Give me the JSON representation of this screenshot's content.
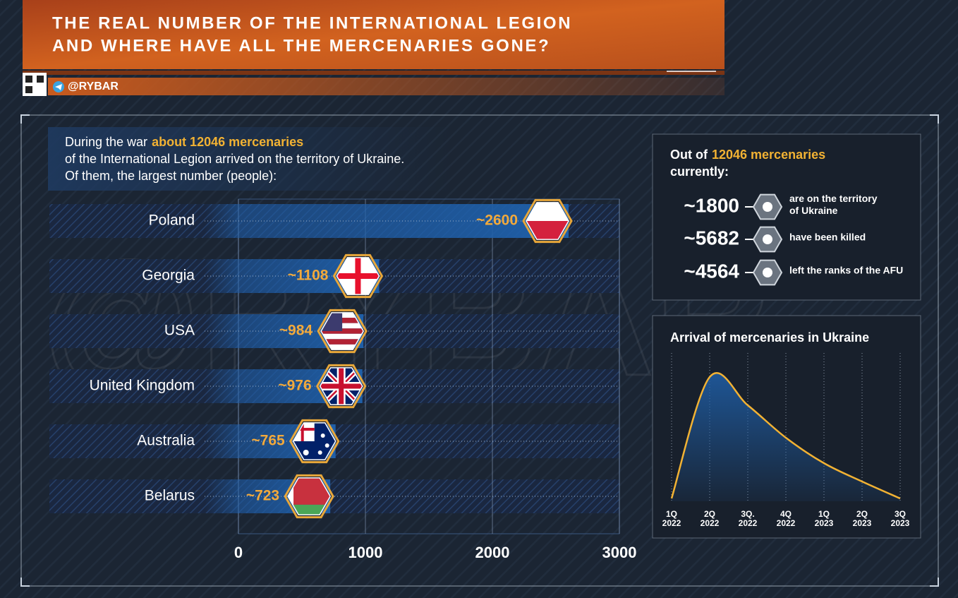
{
  "header": {
    "title": [
      "THE REAL NUMBER OF THE INTERNATIONAL LEGION",
      "AND WHERE HAVE ALL THE MERCENARIES GONE?"
    ],
    "handle": "@RYBAR"
  },
  "watermark": "@RYBAR",
  "intro": {
    "lead": "During the war",
    "highlight": "about 12046 mercenaries",
    "rest": [
      "of the International Legion arrived on the territory of Ukraine.",
      "Of them, the largest number (people):"
    ]
  },
  "summary": {
    "lead": "Out of",
    "highlight": "12046 mercenaries",
    "tail": "currently:",
    "items": [
      {
        "value": 1800,
        "value_label": "~1800",
        "text": [
          "are on the territory",
          "of Ukraine"
        ]
      },
      {
        "value": 5682,
        "value_label": "~5682",
        "text": [
          "have been killed"
        ]
      },
      {
        "value": 4564,
        "value_label": "~4564",
        "text": [
          "left the ranks of the AFU"
        ]
      }
    ]
  },
  "chart_data": [
    {
      "type": "bar",
      "orientation": "horizontal",
      "categories": [
        "Poland",
        "Georgia",
        "USA",
        "United Kingdom",
        "Australia",
        "Belarus"
      ],
      "values": [
        2600,
        1108,
        984,
        976,
        765,
        723
      ],
      "value_labels": [
        "~2600",
        "~1108",
        "~984",
        "~976",
        "~765",
        "~723"
      ],
      "color": "#1f5fa8",
      "xlim": [
        0,
        3000
      ],
      "xticks": [
        0,
        1000,
        2000,
        3000
      ],
      "grid": true
    },
    {
      "type": "line",
      "title": "Arrival of mercenaries in Ukraine",
      "categories": [
        [
          "1Q",
          "2022"
        ],
        [
          "2Q",
          "2022"
        ],
        [
          "3Q.",
          "2022"
        ],
        [
          "4Q",
          "2022"
        ],
        [
          "1Q",
          "2023"
        ],
        [
          "2Q",
          "2023"
        ],
        [
          "3Q",
          "2023"
        ]
      ],
      "values": [
        2,
        88,
        68,
        45,
        27,
        14,
        2
      ],
      "color": "#f2b233",
      "ylim": [
        0,
        100
      ],
      "grid": true
    }
  ]
}
